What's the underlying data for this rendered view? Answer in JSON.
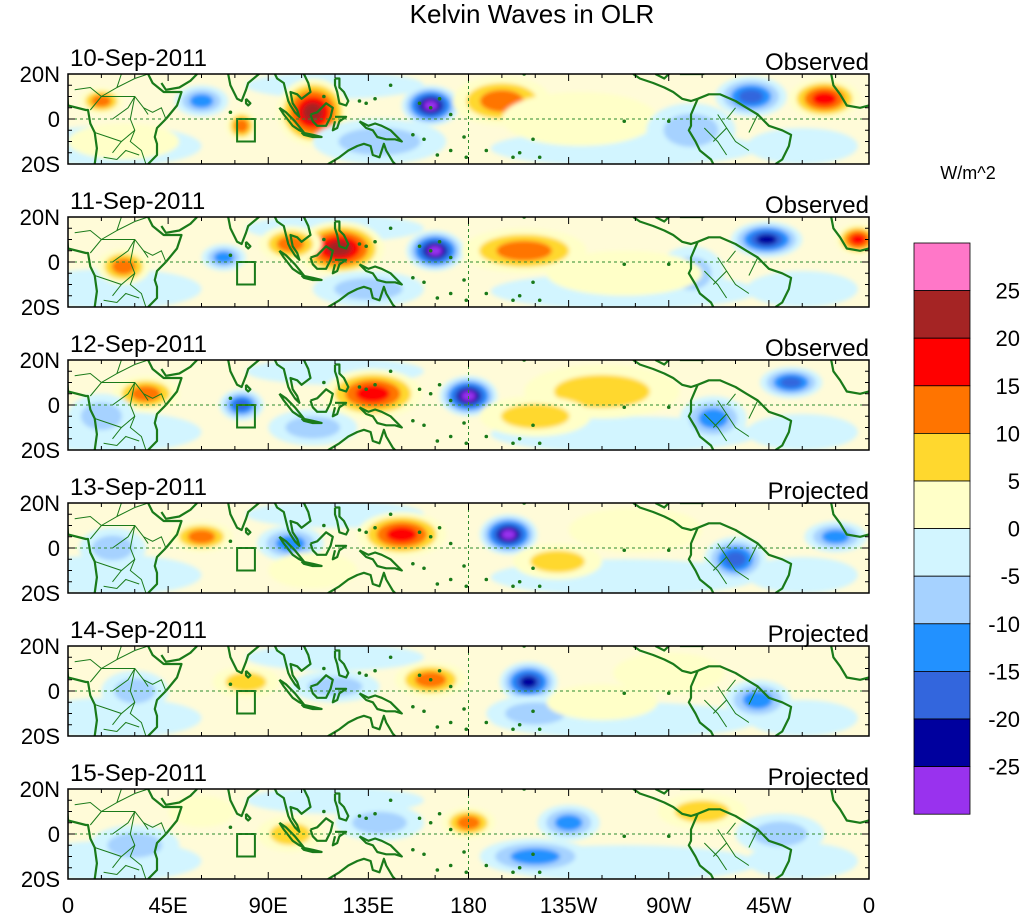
{
  "title": "Kelvin Waves in OLR",
  "units": "W/m^2",
  "colors": {
    "coast": "#1a7a1a",
    "equator": "#2e8b2e",
    "frame": "#000000"
  },
  "lat_labels": [
    "20N",
    "0",
    "20S"
  ],
  "lon_labels": [
    "0",
    "45E",
    "90E",
    "135E",
    "180",
    "135W",
    "90W",
    "45W",
    "0"
  ],
  "colorbar": {
    "colors": [
      "#ff77c8",
      "#a52424",
      "#ff0000",
      "#ff7400",
      "#ffd82e",
      "#ffffc8",
      "#d2f5ff",
      "#a6d2ff",
      "#2291ff",
      "#3366dd",
      "#00009e",
      "#9932ee"
    ],
    "labels": [
      "25",
      "20",
      "15",
      "10",
      "5",
      "0",
      "-5",
      "-10",
      "-15",
      "-20",
      "-25"
    ]
  },
  "panels": [
    {
      "date": "10-Sep-2011",
      "status": "Observed",
      "anomalies": [
        {
          "lon": 110,
          "lat": 3,
          "rlon": 16,
          "rlat": 15,
          "value": 24
        },
        {
          "lon": 163,
          "lat": 6,
          "rlon": 13,
          "rlat": 9,
          "value": -28
        },
        {
          "lon": 195,
          "lat": 8,
          "rlon": 22,
          "rlat": 11,
          "value": 12
        },
        {
          "lon": 340,
          "lat": 9,
          "rlon": 16,
          "rlat": 9,
          "value": 16
        },
        {
          "lon": 307,
          "lat": 10,
          "rlon": 16,
          "rlat": 9,
          "value": -15
        },
        {
          "lon": 78,
          "lat": -3,
          "rlon": 7,
          "rlat": 7,
          "value": 12
        },
        {
          "lon": 60,
          "lat": 8,
          "rlon": 12,
          "rlat": 7,
          "value": -10
        },
        {
          "lon": 15,
          "lat": 8,
          "rlon": 10,
          "rlat": 6,
          "value": 10
        },
        {
          "lon": 230,
          "lat": 0,
          "rlon": 35,
          "rlat": 12,
          "value": 3
        },
        {
          "lon": 280,
          "lat": -5,
          "rlon": 20,
          "rlat": 12,
          "value": -7
        },
        {
          "lon": 140,
          "lat": -10,
          "rlon": 30,
          "rlat": 10,
          "value": -8
        },
        {
          "lon": 25,
          "lat": -10,
          "rlon": 25,
          "rlat": 8,
          "value": 4
        }
      ]
    },
    {
      "date": "11-Sep-2011",
      "status": "Observed",
      "anomalies": [
        {
          "lon": 122,
          "lat": 6,
          "rlon": 20,
          "rlat": 12,
          "value": 20
        },
        {
          "lon": 165,
          "lat": 5,
          "rlon": 13,
          "rlat": 9,
          "value": -28
        },
        {
          "lon": 205,
          "lat": 5,
          "rlon": 28,
          "rlat": 10,
          "value": 12
        },
        {
          "lon": 314,
          "lat": 10,
          "rlon": 16,
          "rlat": 8,
          "value": -20
        },
        {
          "lon": 355,
          "lat": 10,
          "rlon": 10,
          "rlat": 7,
          "value": 16
        },
        {
          "lon": 70,
          "lat": 2,
          "rlon": 10,
          "rlat": 6,
          "value": -14
        },
        {
          "lon": 25,
          "lat": -2,
          "rlon": 12,
          "rlat": 8,
          "value": 12
        },
        {
          "lon": 280,
          "lat": -5,
          "rlon": 15,
          "rlat": 12,
          "value": -9
        },
        {
          "lon": 250,
          "lat": -5,
          "rlon": 35,
          "rlat": 10,
          "value": 4
        },
        {
          "lon": 100,
          "lat": 8,
          "rlon": 14,
          "rlat": 8,
          "value": 10
        },
        {
          "lon": 135,
          "lat": -12,
          "rlon": 25,
          "rlat": 8,
          "value": -7
        }
      ]
    },
    {
      "date": "12-Sep-2011",
      "status": "Observed",
      "anomalies": [
        {
          "lon": 137,
          "lat": 5,
          "rlon": 22,
          "rlat": 11,
          "value": 18
        },
        {
          "lon": 180,
          "lat": 4,
          "rlon": 13,
          "rlat": 9,
          "value": -28
        },
        {
          "lon": 240,
          "lat": 6,
          "rlon": 35,
          "rlat": 12,
          "value": 6
        },
        {
          "lon": 325,
          "lat": 10,
          "rlon": 14,
          "rlat": 7,
          "value": -18
        },
        {
          "lon": 78,
          "lat": 0,
          "rlon": 10,
          "rlat": 7,
          "value": -18
        },
        {
          "lon": 35,
          "lat": 5,
          "rlon": 15,
          "rlat": 8,
          "value": 12
        },
        {
          "lon": 290,
          "lat": -6,
          "rlon": 15,
          "rlat": 10,
          "value": -12
        },
        {
          "lon": 210,
          "lat": -5,
          "rlon": 25,
          "rlat": 9,
          "value": 6
        },
        {
          "lon": 15,
          "lat": -5,
          "rlon": 15,
          "rlat": 10,
          "value": -8
        },
        {
          "lon": 110,
          "lat": -10,
          "rlon": 20,
          "rlat": 8,
          "value": -6
        }
      ]
    },
    {
      "date": "13-Sep-2011",
      "status": "Projected",
      "anomalies": [
        {
          "lon": 150,
          "lat": 6,
          "rlon": 20,
          "rlat": 10,
          "value": 16
        },
        {
          "lon": 198,
          "lat": 6,
          "rlon": 13,
          "rlat": 9,
          "value": -26
        },
        {
          "lon": 255,
          "lat": 8,
          "rlon": 30,
          "rlat": 10,
          "value": 4
        },
        {
          "lon": 60,
          "lat": 5,
          "rlon": 14,
          "rlat": 7,
          "value": 12
        },
        {
          "lon": 100,
          "lat": 2,
          "rlon": 15,
          "rlat": 8,
          "value": -10
        },
        {
          "lon": 300,
          "lat": -5,
          "rlon": 14,
          "rlat": 10,
          "value": -15
        },
        {
          "lon": 345,
          "lat": 5,
          "rlon": 14,
          "rlat": 7,
          "value": -10
        },
        {
          "lon": 220,
          "lat": -6,
          "rlon": 20,
          "rlat": 8,
          "value": 6
        },
        {
          "lon": 20,
          "lat": 0,
          "rlon": 15,
          "rlat": 9,
          "value": -8
        },
        {
          "lon": 110,
          "lat": -10,
          "rlon": 20,
          "rlat": 8,
          "value": 4
        }
      ]
    },
    {
      "date": "14-Sep-2011",
      "status": "Projected",
      "anomalies": [
        {
          "lon": 163,
          "lat": 5,
          "rlon": 16,
          "rlat": 8,
          "value": 12
        },
        {
          "lon": 207,
          "lat": 4,
          "rlon": 13,
          "rlat": 9,
          "value": -22
        },
        {
          "lon": 270,
          "lat": 8,
          "rlon": 25,
          "rlat": 9,
          "value": 4
        },
        {
          "lon": 80,
          "lat": 4,
          "rlon": 15,
          "rlat": 7,
          "value": 8
        },
        {
          "lon": 120,
          "lat": 2,
          "rlon": 20,
          "rlat": 7,
          "value": -9
        },
        {
          "lon": 310,
          "lat": -4,
          "rlon": 15,
          "rlat": 9,
          "value": -10
        },
        {
          "lon": 210,
          "lat": -10,
          "rlon": 22,
          "rlat": 8,
          "value": -8
        },
        {
          "lon": 30,
          "lat": 0,
          "rlon": 15,
          "rlat": 9,
          "value": -6
        },
        {
          "lon": 240,
          "lat": -5,
          "rlon": 25,
          "rlat": 8,
          "value": 4
        }
      ]
    },
    {
      "date": "15-Sep-2011",
      "status": "Projected",
      "anomalies": [
        {
          "lon": 180,
          "lat": 5,
          "rlon": 12,
          "rlat": 7,
          "value": 12
        },
        {
          "lon": 225,
          "lat": 5,
          "rlon": 14,
          "rlat": 8,
          "value": -14
        },
        {
          "lon": 285,
          "lat": 10,
          "rlon": 20,
          "rlat": 8,
          "value": 6
        },
        {
          "lon": 100,
          "lat": 0,
          "rlon": 15,
          "rlat": 8,
          "value": 6
        },
        {
          "lon": 140,
          "lat": 5,
          "rlon": 20,
          "rlat": 8,
          "value": -7
        },
        {
          "lon": 210,
          "lat": -10,
          "rlon": 25,
          "rlat": 8,
          "value": -10
        },
        {
          "lon": 30,
          "lat": -5,
          "rlon": 20,
          "rlat": 9,
          "value": -6
        },
        {
          "lon": 320,
          "lat": 0,
          "rlon": 20,
          "rlat": 9,
          "value": -7
        },
        {
          "lon": 60,
          "lat": 10,
          "rlon": 15,
          "rlat": 7,
          "value": 4
        }
      ]
    }
  ]
}
